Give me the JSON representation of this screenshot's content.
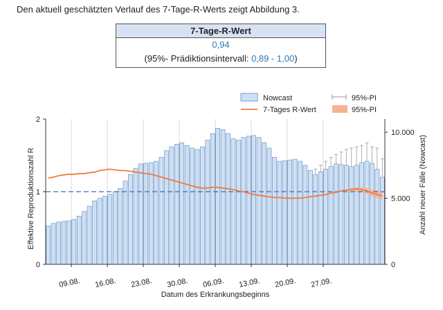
{
  "intro_text": "Den aktuell geschätzten Verlauf des 7-Tage-R-Werts zeigt Abbildung 3.",
  "table": {
    "header": "7-Tage-R-Wert",
    "value": "0,94",
    "pi_prefix": "(95%- Prädiktionsintervall: ",
    "pi_range": "0,89 - 1,00",
    "pi_suffix": ")"
  },
  "colors": {
    "bar_fill": "#cfe0f3",
    "bar_stroke": "#5b86c0",
    "line": "#f07a3c",
    "line_band": "#f7b391",
    "threshold": "#3b6db5",
    "errorbar": "#999999"
  },
  "chart_data": {
    "type": "bar",
    "legend": [
      {
        "name": "Nowcast",
        "kind": "bar"
      },
      {
        "name": "95%-PI",
        "kind": "errorbar"
      },
      {
        "name": "7-Tages R-Wert",
        "kind": "line"
      },
      {
        "name": "95%-PI",
        "kind": "band"
      }
    ],
    "xlabel": "Datum des Erkrankungsbeginns",
    "ylabel_left": "Effektive Reproduktionszahl R",
    "ylabel_right": "Anzahl neuer Fälle (Nowcast)",
    "y_left_lim": [
      0,
      2
    ],
    "y_left_ticks": [
      "0",
      "1",
      "2"
    ],
    "y_right_lim": [
      0,
      11000
    ],
    "y_right_ticks": [
      {
        "value": 0,
        "label": "0"
      },
      {
        "value": 5000,
        "label": "5.000"
      },
      {
        "value": 10000,
        "label": "10.000"
      }
    ],
    "x_tick_labels": [
      "09.08.",
      "16.08.",
      "23.08.",
      "30.08.",
      "06.09.",
      "13.09.",
      "20.09.",
      "27.09."
    ],
    "x_tick_first_day_index": 5,
    "x_tick_step_days": 7,
    "reference_line_R": 1,
    "nowcast_bars": [
      2900,
      3100,
      3200,
      3250,
      3300,
      3400,
      3650,
      4000,
      4400,
      4800,
      5000,
      5150,
      5300,
      5500,
      5750,
      6300,
      6800,
      7250,
      7600,
      7650,
      7700,
      7800,
      8100,
      8600,
      8900,
      9100,
      9200,
      9000,
      8800,
      8700,
      8900,
      9400,
      9900,
      10300,
      10200,
      9900,
      9500,
      9400,
      9600,
      9700,
      9750,
      9600,
      9200,
      8800,
      8100,
      7800,
      7850,
      7900,
      7950,
      7800,
      7500,
      7100,
      6800,
      7000,
      7200,
      7400,
      7600,
      7550,
      7500,
      7400,
      7500,
      7700,
      7800,
      7650,
      7200,
      6600
    ],
    "pi_error_bars_from_index": 52,
    "nowcast_pi_upper": [
      7200,
      7500,
      7800,
      8100,
      8300,
      8500,
      8700,
      8800,
      8900,
      9000,
      9200,
      8900,
      8800,
      8000
    ],
    "r_value": [
      1.19,
      1.2,
      1.22,
      1.23,
      1.24,
      1.24,
      1.25,
      1.25,
      1.26,
      1.27,
      1.29,
      1.3,
      1.31,
      1.3,
      1.29,
      1.29,
      1.28,
      1.27,
      1.26,
      1.25,
      1.24,
      1.22,
      1.2,
      1.18,
      1.16,
      1.14,
      1.12,
      1.1,
      1.08,
      1.06,
      1.05,
      1.05,
      1.06,
      1.06,
      1.05,
      1.04,
      1.03,
      1.01,
      1.0,
      0.98,
      0.96,
      0.95,
      0.94,
      0.93,
      0.92,
      0.92,
      0.91,
      0.91,
      0.91,
      0.91,
      0.92,
      0.93,
      0.94,
      0.95,
      0.96,
      0.98,
      0.99,
      1.01,
      1.02,
      1.03,
      1.04,
      1.03,
      1.01,
      0.98,
      0.96,
      0.94
    ],
    "r_band_from_index": 56,
    "r_band_lower": [
      0.99,
      1.0,
      1.01,
      1.01,
      1.0,
      0.99,
      0.97,
      0.94,
      0.91,
      0.89
    ],
    "r_band_upper": [
      1.0,
      1.02,
      1.03,
      1.05,
      1.06,
      1.06,
      1.05,
      1.03,
      1.02,
      1.0
    ]
  }
}
